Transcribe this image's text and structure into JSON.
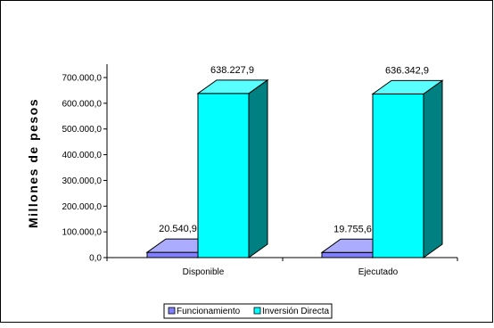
{
  "chart_data": {
    "type": "bar",
    "three_d": true,
    "title": "",
    "xlabel": "",
    "ylabel": "Millones de pesos",
    "categories": [
      "Disponible",
      "Ejecutado"
    ],
    "series": [
      {
        "name": "Funcionamiento",
        "values": [
          20540.9,
          19755.6
        ],
        "labels": [
          "20.540,9",
          "19.755,6"
        ],
        "color": "#8080ff"
      },
      {
        "name": "Inversión Directa",
        "values": [
          638227.9,
          636342.9
        ],
        "labels": [
          "638.227,9",
          "636.342,9"
        ],
        "color": "#00ffff"
      }
    ],
    "ylim": [
      0,
      700000
    ],
    "yticks": [
      0,
      100000,
      200000,
      300000,
      400000,
      500000,
      600000,
      700000
    ],
    "ytick_labels": [
      "0,0",
      "100.000,0",
      "200.000,0",
      "300.000,0",
      "400.000,0",
      "500.000,0",
      "600.000,0",
      "700.000,0"
    ],
    "grid": false,
    "legend": {
      "position": "bottom",
      "entries": [
        "Funcionamiento",
        "Inversión Directa"
      ]
    }
  }
}
